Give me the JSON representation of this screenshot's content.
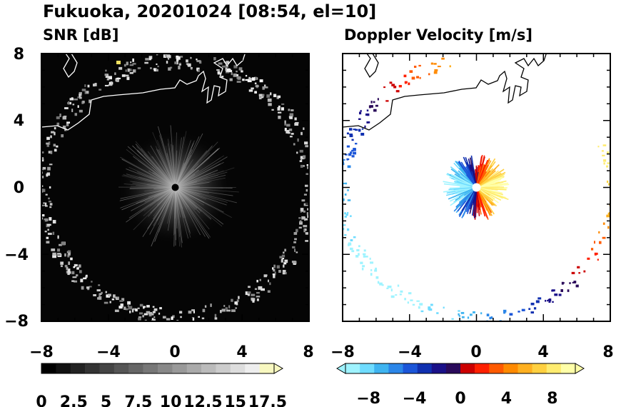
{
  "title": "Fukuoka, 20201024 [08:54, el=10]",
  "colors": {
    "panel_snr_background": "#050505",
    "coastline": "#ffffff",
    "coastline_right": "#000000"
  },
  "chart_data": [
    {
      "type": "heatmap",
      "title": "SNR [dB]",
      "xlim": [
        -8,
        8
      ],
      "ylim": [
        -8,
        8
      ],
      "xticks": [
        "−8",
        "−4",
        "0",
        "4",
        "8"
      ],
      "yticks": [
        "8",
        "4",
        "0",
        "−4",
        "−8"
      ],
      "colorbar": {
        "range": [
          0,
          18
        ],
        "extend": "max",
        "ticks": [
          "0",
          "2.5",
          "5",
          "7.5",
          "10",
          "12.5",
          "15",
          "17.5"
        ],
        "colors": [
          "#000000",
          "#111111",
          "#222222",
          "#333333",
          "#444444",
          "#555555",
          "#666666",
          "#777777",
          "#888888",
          "#999999",
          "#aaaaaa",
          "#bbbbbb",
          "#cccccc",
          "#dddddd",
          "#eeeeee",
          "#f8f8c0"
        ]
      }
    },
    {
      "type": "heatmap",
      "title": "Doppler Velocity [m/s]",
      "xlim": [
        -8,
        8
      ],
      "ylim": [
        -8,
        8
      ],
      "xticks": [
        "−8",
        "−4",
        "0",
        "4",
        "8"
      ],
      "colorbar": {
        "range": [
          -10,
          10
        ],
        "extend": "both",
        "ticks": [
          "−8",
          "−4",
          "0",
          "4",
          "8"
        ],
        "colors": [
          "#9ff3ff",
          "#6fdcff",
          "#3fb4f0",
          "#2b86e8",
          "#1b55d8",
          "#1030b0",
          "#1a1088",
          "#2a0a5a",
          "#cc0000",
          "#ff2000",
          "#ff5a00",
          "#ff8a00",
          "#ffb020",
          "#ffd040",
          "#ffec70",
          "#ffffa8"
        ]
      }
    }
  ]
}
